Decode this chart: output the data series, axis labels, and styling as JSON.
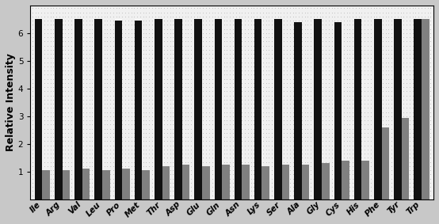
{
  "categories": [
    "Ile",
    "Arg",
    "Val",
    "Leu",
    "Pro",
    "Met",
    "Thr",
    "Asp",
    "Glu",
    "Gln",
    "Asn",
    "Lys",
    "Ser",
    "Ala",
    "Gly",
    "Cys",
    "His",
    "Phe",
    "Tyr",
    "Trp"
  ],
  "black_bars": [
    6.5,
    6.5,
    6.5,
    6.5,
    6.45,
    6.45,
    6.5,
    6.5,
    6.5,
    6.5,
    6.5,
    6.5,
    6.5,
    6.4,
    6.5,
    6.4,
    6.5,
    6.5,
    6.5,
    6.5
  ],
  "gray_bars": [
    1.05,
    1.05,
    1.1,
    1.05,
    1.1,
    1.05,
    1.2,
    1.25,
    1.2,
    1.25,
    1.25,
    1.2,
    1.25,
    1.25,
    1.3,
    1.4,
    1.4,
    2.6,
    2.95,
    6.5
  ],
  "ylabel": "Relative Intensity",
  "ylim": [
    0,
    7.0
  ],
  "yticks": [
    1,
    2,
    3,
    4,
    5,
    6
  ],
  "bar_width": 0.38,
  "black_color": "#111111",
  "gray_color": "#808080",
  "bg_color": "#c8c8c8",
  "fontsize_label": 9,
  "fontsize_tick": 7.5
}
